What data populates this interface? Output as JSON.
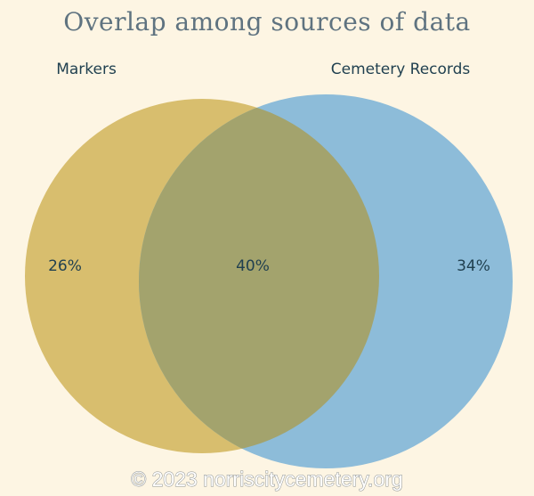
{
  "title": "Overlap among sources of data",
  "sets": [
    {
      "label": "Markers",
      "color": "#d8be6e"
    },
    {
      "label": "Cemetery Records",
      "color": "#8dbcd9"
    }
  ],
  "overlap_color": "#a3a36d",
  "regions": {
    "markers_only": "26%",
    "both": "40%",
    "records_only": "34%"
  },
  "watermark": "© 2023 norriscitycemetery.org"
}
